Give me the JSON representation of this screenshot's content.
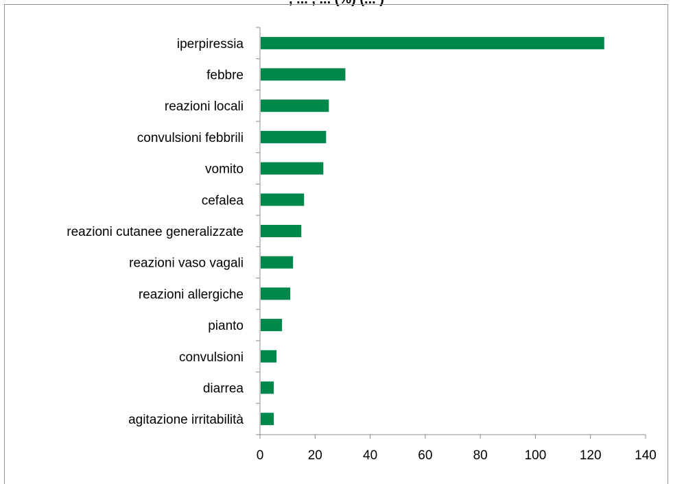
{
  "chart_data": {
    "type": "bar",
    "orientation": "horizontal",
    "title": ", ... , ... (%) (... )",
    "categories": [
      "iperpiressia",
      "febbre",
      "reazioni locali",
      "convulsioni febbrili",
      "vomito",
      "cefalea",
      "reazioni cutanee generalizzate",
      "reazioni vaso vagali",
      "reazioni allergiche",
      "pianto",
      "convulsioni",
      "diarrea",
      "agitazione irritabilità"
    ],
    "values": [
      125,
      31,
      25,
      24,
      23,
      16,
      15,
      12,
      11,
      8,
      6,
      5,
      5
    ],
    "xlim": [
      0,
      140
    ],
    "xticks": [
      "0",
      "20",
      "40",
      "60",
      "80",
      "100",
      "120",
      "140"
    ],
    "xlabel": "",
    "ylabel": "",
    "grid": false,
    "legend": "none",
    "bar_color": "#00884a",
    "axis_color": "#8c8c8c"
  }
}
